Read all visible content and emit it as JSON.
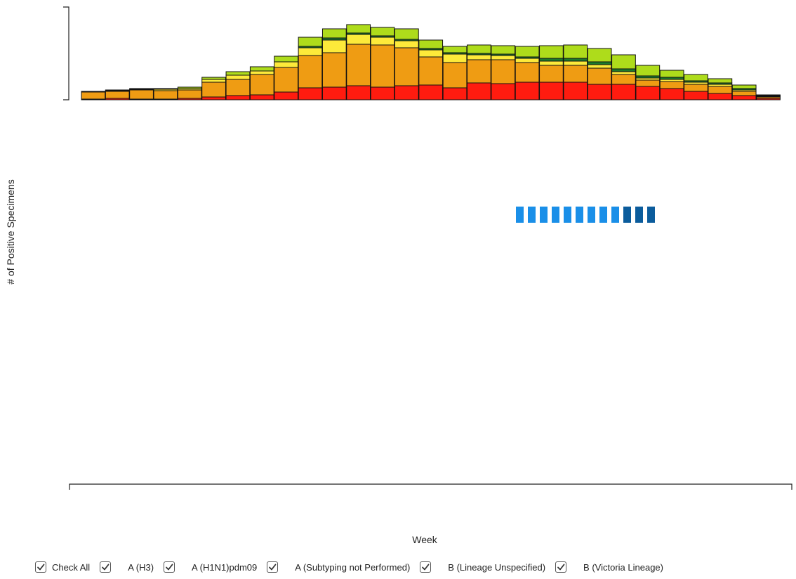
{
  "chart_data": {
    "type": "bar",
    "stacked": true,
    "title": "",
    "xlabel": "Week",
    "ylabel": "# of Positive Specimens",
    "categories": [
      "",
      "",
      "",
      "",
      "",
      "",
      "",
      "",
      "",
      "",
      "",
      "",
      "",
      "",
      "",
      "",
      "",
      "",
      "",
      "",
      "",
      "",
      "",
      "",
      "",
      "",
      "",
      "",
      ""
    ],
    "series": [
      {
        "name": "A (H1N1)pdm09",
        "color": "#ff1b0f",
        "values": [
          1,
          2,
          1,
          1,
          2,
          4,
          6,
          7,
          11,
          17,
          18,
          20,
          18,
          20,
          21,
          17,
          24,
          23,
          25,
          25,
          25,
          22,
          22,
          19,
          16,
          12,
          9,
          6,
          2
        ]
      },
      {
        "name": "A (H3)",
        "color": "#ef9c13",
        "values": [
          10,
          10,
          13,
          12,
          12,
          21,
          23,
          29,
          35,
          46,
          49,
          59,
          60,
          54,
          40,
          36,
          33,
          34,
          28,
          24,
          24,
          23,
          14,
          9,
          10,
          10,
          10,
          6,
          2
        ]
      },
      {
        "name": "A (Subtyping not Performed)",
        "color": "#fdea3a",
        "values": [
          1,
          1,
          1,
          2,
          2,
          4,
          6,
          5,
          8,
          11,
          18,
          14,
          11,
          10,
          10,
          12,
          7,
          6,
          6,
          6,
          6,
          5,
          4,
          3,
          3,
          3,
          3,
          2,
          1
        ]
      },
      {
        "name": "B (Victoria Lineage)",
        "color": "#1d7a2d",
        "values": [
          0,
          0,
          0,
          0,
          0,
          0,
          0,
          0,
          0,
          2,
          3,
          2,
          2,
          2,
          2,
          2,
          2,
          2,
          2,
          4,
          4,
          4,
          4,
          3,
          3,
          2,
          2,
          2,
          1
        ]
      },
      {
        "name": "B (Lineage Unspecified)",
        "color": "#aedc1b",
        "values": [
          0,
          1,
          1,
          1,
          2,
          3,
          5,
          6,
          8,
          13,
          13,
          12,
          12,
          15,
          12,
          9,
          12,
          12,
          15,
          18,
          19,
          19,
          20,
          15,
          10,
          9,
          6,
          5,
          1
        ]
      }
    ],
    "pending_markers": {
      "count": 12,
      "colors": [
        "#1a8fe8",
        "#1a8fe8",
        "#1a8fe8",
        "#1a8fe8",
        "#1a8fe8",
        "#1a8fe8",
        "#1a8fe8",
        "#1a8fe8",
        "#1a8fe8",
        "#0b5c9c",
        "#0b5c9c",
        "#0b5c9c"
      ]
    },
    "grid": false,
    "legend": "bottom"
  },
  "axes": {
    "y_title": "# of Positive Specimens",
    "x_title": "Week"
  },
  "legend": {
    "items": [
      {
        "label": "Check All",
        "checked": true
      },
      {
        "label": "A (H3)",
        "checked": true
      },
      {
        "label": "A (H1N1)pdm09",
        "checked": true
      },
      {
        "label": "A (Subtyping not Performed)",
        "checked": true
      },
      {
        "label": "B (Lineage Unspecified)",
        "checked": true
      },
      {
        "label": "B (Victoria Lineage)",
        "checked": true
      }
    ]
  }
}
